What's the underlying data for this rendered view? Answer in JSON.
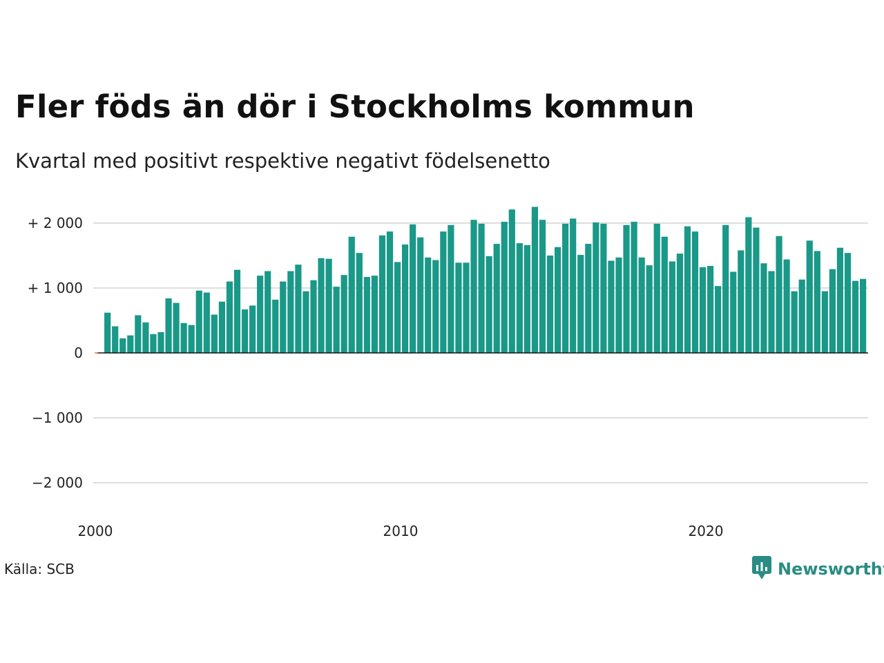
{
  "title": "Fler föds än dör i Stockholms kommun",
  "subtitle": "Kvartal med positivt respektive negativt födelsenetto",
  "source": "Källa: SCB",
  "brand": {
    "name": "Newsworthy",
    "icon": "newsworthy-chart-bubble-icon",
    "color": "#2a8c82"
  },
  "chart_data": {
    "type": "bar",
    "x_start": "2000 Q1",
    "frequency": "quarterly",
    "values": [
      0,
      620,
      410,
      225,
      270,
      580,
      470,
      290,
      320,
      840,
      770,
      460,
      430,
      960,
      930,
      590,
      790,
      1100,
      1280,
      670,
      730,
      1190,
      1260,
      820,
      1100,
      1260,
      1360,
      950,
      1120,
      1460,
      1450,
      1020,
      1200,
      1790,
      1540,
      1170,
      1190,
      1810,
      1870,
      1400,
      1670,
      1980,
      1780,
      1470,
      1430,
      1870,
      1970,
      1390,
      1390,
      2050,
      1990,
      1490,
      1680,
      2020,
      2210,
      1690,
      1660,
      2250,
      2050,
      1500,
      1630,
      1990,
      2070,
      1510,
      1680,
      2010,
      1990,
      1420,
      1470,
      1970,
      2020,
      1470,
      1350,
      1990,
      1790,
      1410,
      1530,
      1950,
      1870,
      1320,
      1340,
      1030,
      1970,
      1250,
      1580,
      2090,
      1930,
      1380,
      1260,
      1800,
      1440,
      950,
      1130,
      1730,
      1570,
      950,
      1290,
      1620,
      1540,
      1110,
      1140
    ],
    "yticks": [
      {
        "value": 2000,
        "label": "+ 2 000"
      },
      {
        "value": 1000,
        "label": "+ 1 000"
      },
      {
        "value": 0,
        "label": "0"
      },
      {
        "value": -1000,
        "label": "−1 000"
      },
      {
        "value": -2000,
        "label": "−2 000"
      }
    ],
    "xticks": [
      {
        "year": 2000,
        "label": "2000"
      },
      {
        "year": 2010,
        "label": "2010"
      },
      {
        "year": 2020,
        "label": "2020"
      }
    ],
    "ylim": [
      -2000,
      2000
    ],
    "positive_color": "#1a9888",
    "negative_color": "#e07b39",
    "grid": true
  }
}
